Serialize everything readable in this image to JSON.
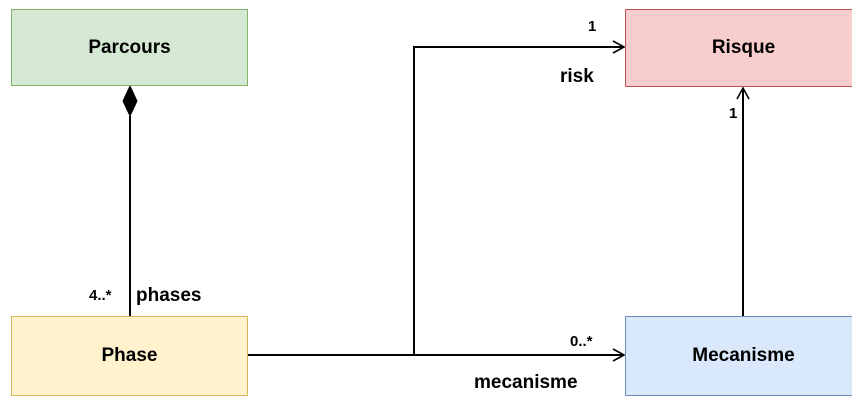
{
  "classes": {
    "parcours": {
      "name": "Parcours",
      "fill": "#d5e8d4",
      "stroke": "#82b366"
    },
    "risque": {
      "name": "Risque",
      "fill": "#f8cecc",
      "stroke": "#b85450"
    },
    "phase": {
      "name": "Phase",
      "fill": "#fff2cc",
      "stroke": "#d6b656"
    },
    "mecanisme": {
      "name": "Mecanisme",
      "fill": "#dae8fc",
      "stroke": "#6c8ebf"
    }
  },
  "relations": {
    "parcours_phase": {
      "type": "composition",
      "role": "phases",
      "multiplicity": "4..*"
    },
    "phase_risque": {
      "type": "association",
      "role": "risk",
      "multiplicity": "1"
    },
    "phase_mecanisme": {
      "type": "association",
      "role": "mecanisme",
      "multiplicity": "0..*"
    },
    "mecanisme_risque": {
      "type": "association",
      "multiplicity": "1"
    }
  }
}
